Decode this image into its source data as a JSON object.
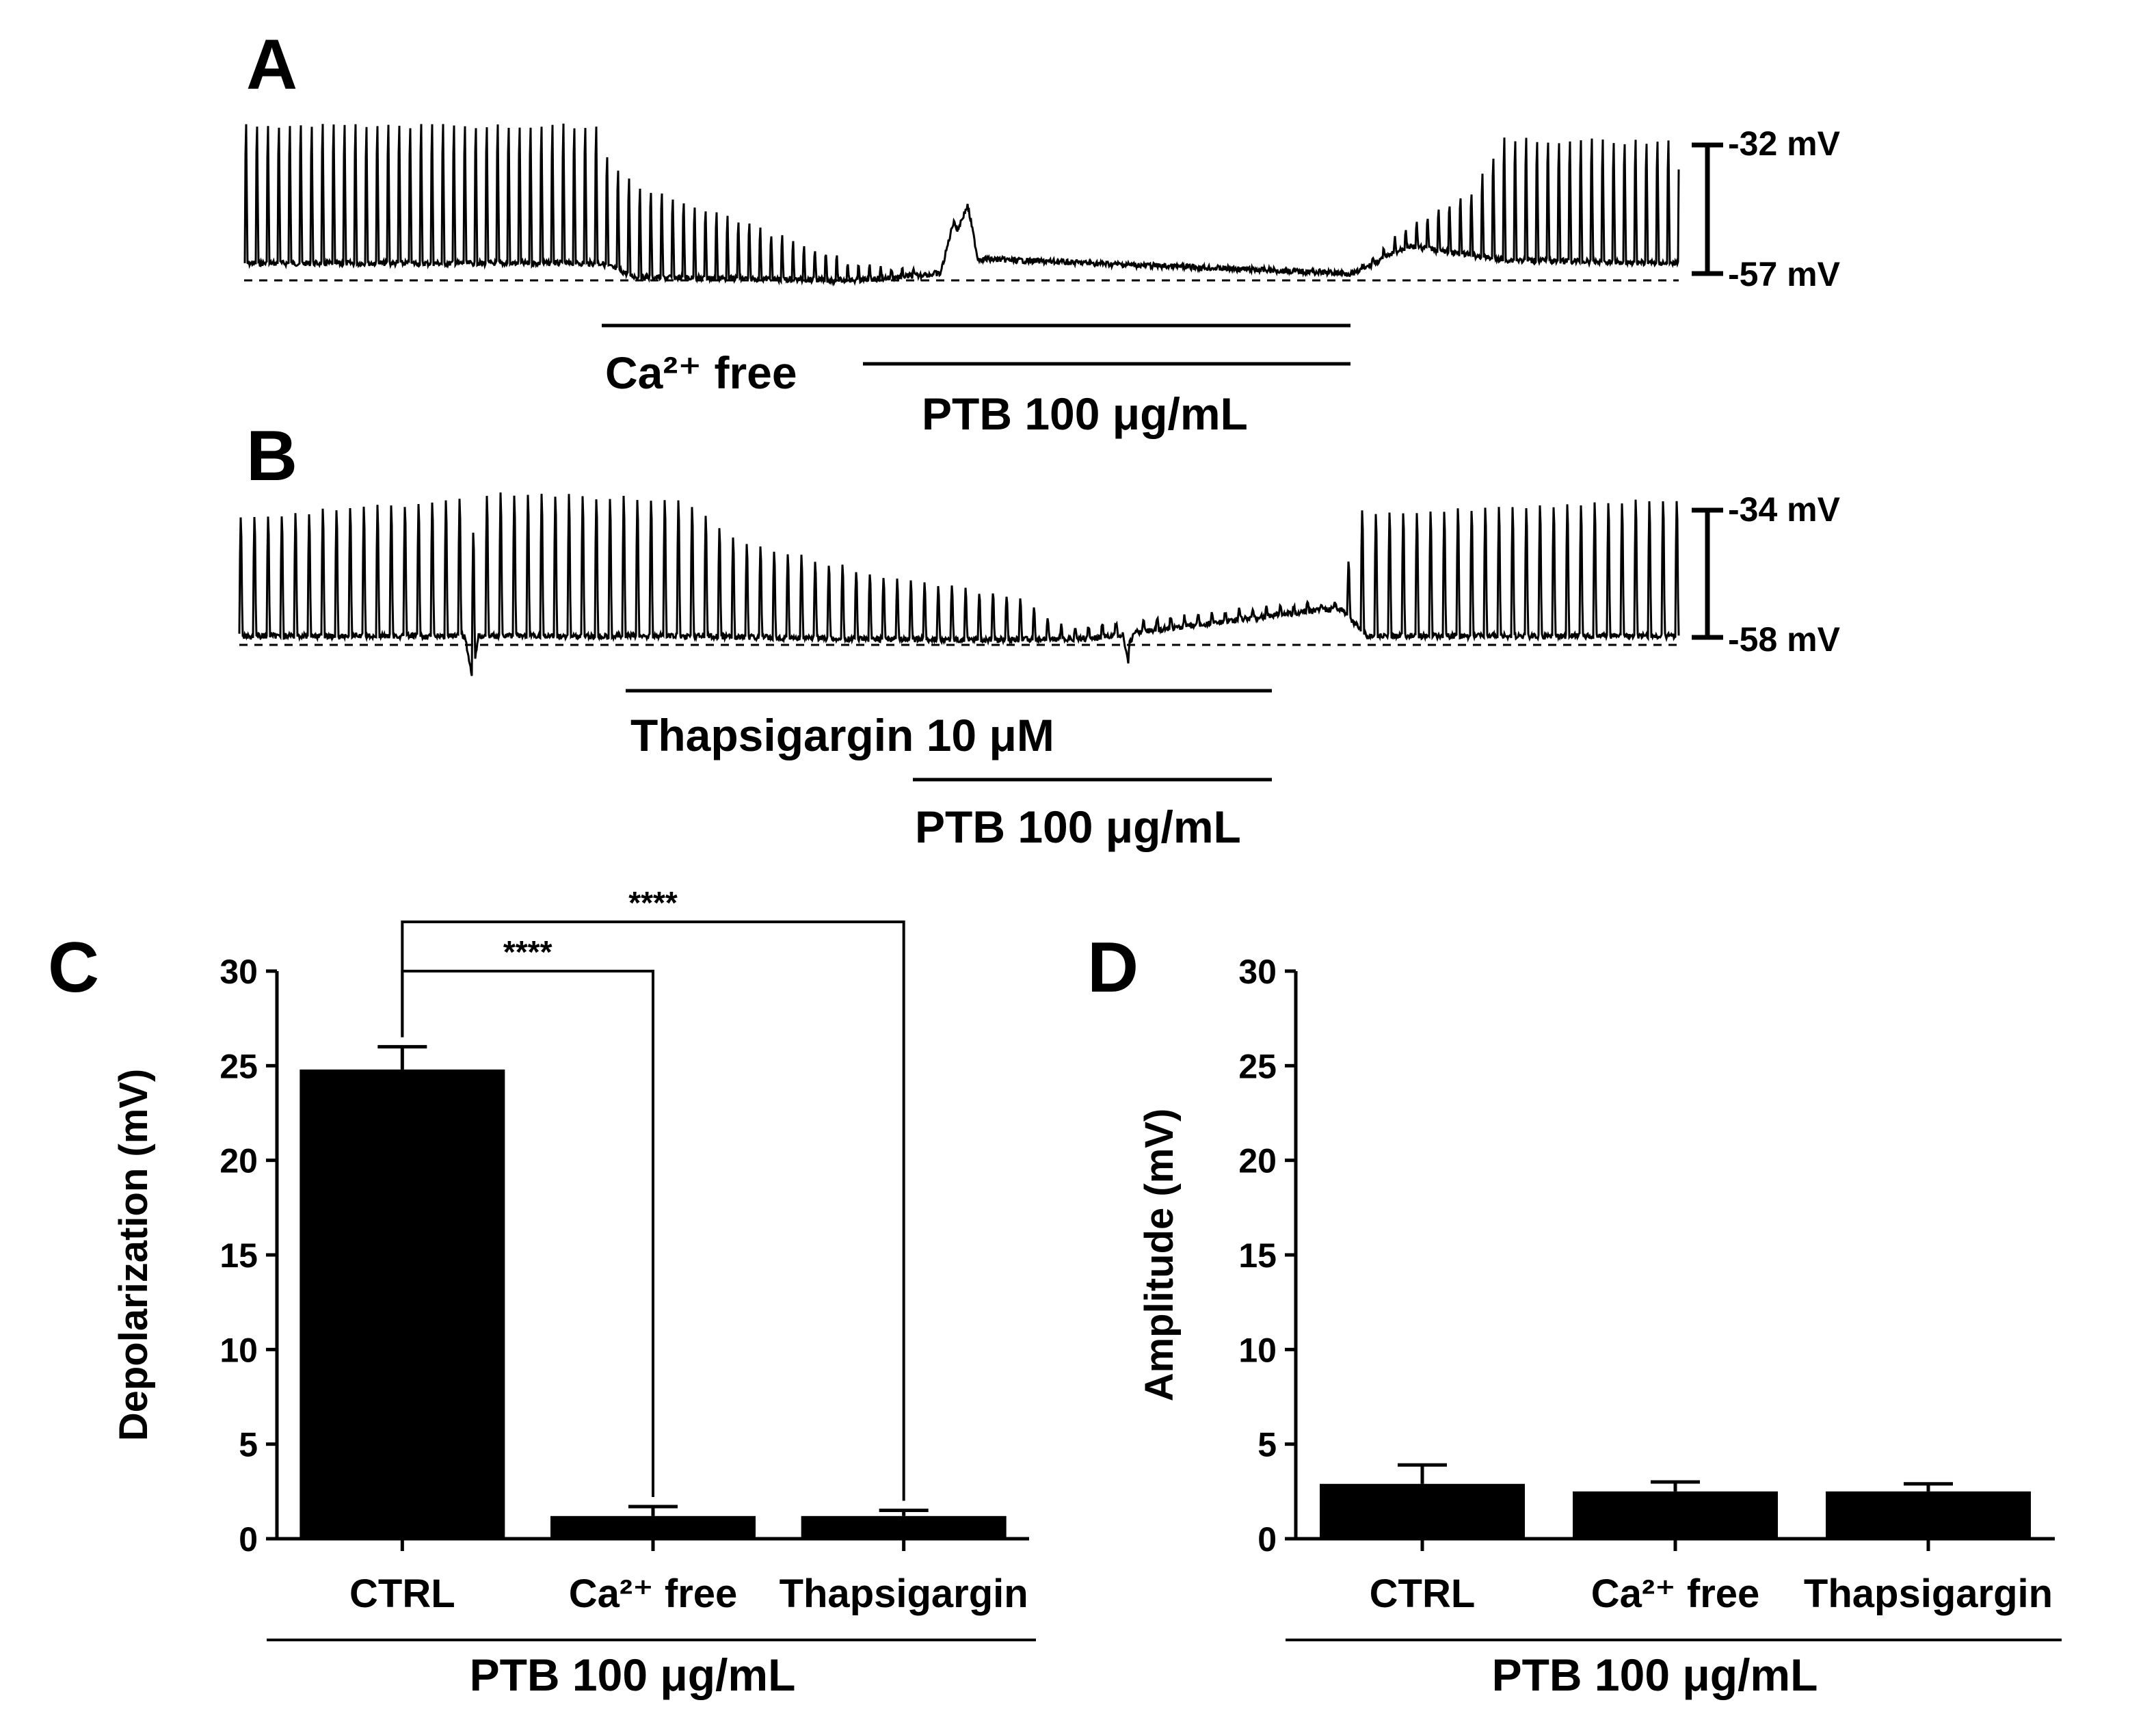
{
  "panels": {
    "A": {
      "letter": "A",
      "scale_top": "-32 mV",
      "scale_bottom": "-57 mV",
      "bar1_label": "Ca²⁺ free",
      "bar2_label": "PTB 100 μg/mL"
    },
    "B": {
      "letter": "B",
      "scale_top": "-34 mV",
      "scale_bottom": "-58 mV",
      "bar1_label": "Thapsigargin 10 μM",
      "bar2_label": "PTB 100 μg/mL"
    },
    "C": {
      "letter": "C"
    },
    "D": {
      "letter": "D"
    }
  },
  "chart_data": [
    {
      "panel": "C",
      "type": "bar",
      "categories": [
        "CTRL",
        "Ca²⁺ free",
        "Thapsigargin"
      ],
      "values": [
        24.8,
        1.2,
        1.2
      ],
      "errors": [
        1.2,
        0.5,
        0.3
      ],
      "ylabel": "Depolarization (mV)",
      "ylim": [
        0,
        30
      ],
      "yticks": [
        0,
        5,
        10,
        15,
        20,
        25,
        30
      ],
      "group_label": "PTB 100 μg/mL",
      "significance": [
        {
          "from": 0,
          "to": 1,
          "label": "****"
        },
        {
          "from": 0,
          "to": 2,
          "label": "****"
        }
      ]
    },
    {
      "panel": "D",
      "type": "bar",
      "categories": [
        "CTRL",
        "Ca²⁺ free",
        "Thapsigargin"
      ],
      "values": [
        2.9,
        2.5,
        2.5
      ],
      "errors": [
        1.0,
        0.5,
        0.4
      ],
      "ylabel": "Amplitude (mV)",
      "ylim": [
        0,
        30
      ],
      "yticks": [
        0,
        5,
        10,
        15,
        20,
        25,
        30
      ],
      "group_label": "PTB 100 μg/mL",
      "significance": []
    }
  ]
}
